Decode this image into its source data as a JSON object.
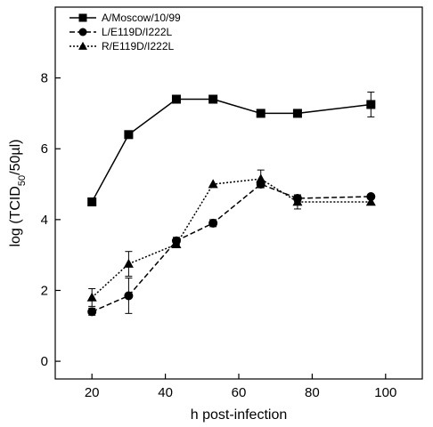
{
  "chart_data": {
    "type": "line",
    "xlabel": "h post-infection",
    "ylabel_parts": {
      "pre": "log (TCID",
      "sub": "50",
      "post": "/50µl)"
    },
    "xlim": [
      10,
      110
    ],
    "ylim": [
      -0.5,
      10
    ],
    "xticks": [
      20,
      40,
      60,
      80,
      100
    ],
    "yticks": [
      0,
      2,
      4,
      6,
      8
    ],
    "grid": false,
    "legend_position": "top-left",
    "series": [
      {
        "name": "A/Moscow/10/99",
        "marker": "square",
        "dash": "solid",
        "points": [
          {
            "x": 20,
            "y": 4.5
          },
          {
            "x": 30,
            "y": 6.4
          },
          {
            "x": 43,
            "y": 7.4
          },
          {
            "x": 53,
            "y": 7.4
          },
          {
            "x": 66,
            "y": 7.0
          },
          {
            "x": 76,
            "y": 7.0
          },
          {
            "x": 96,
            "y": 7.25,
            "err": 0.35
          }
        ]
      },
      {
        "name": "L/E119D/I222L",
        "marker": "circle",
        "dash": "dashed",
        "points": [
          {
            "x": 20,
            "y": 1.4,
            "err": 0.1
          },
          {
            "x": 30,
            "y": 1.85,
            "err": 0.5
          },
          {
            "x": 43,
            "y": 3.4,
            "err": 0.1
          },
          {
            "x": 53,
            "y": 3.9,
            "err": 0.1
          },
          {
            "x": 66,
            "y": 5.0,
            "err": 0.1
          },
          {
            "x": 76,
            "y": 4.6,
            "err": 0.1
          },
          {
            "x": 96,
            "y": 4.65
          }
        ]
      },
      {
        "name": "R/E119D/I222L",
        "marker": "triangle",
        "dash": "dotted",
        "points": [
          {
            "x": 20,
            "y": 1.8,
            "err": 0.25
          },
          {
            "x": 30,
            "y": 2.75,
            "err": 0.35
          },
          {
            "x": 43,
            "y": 3.3
          },
          {
            "x": 53,
            "y": 5.0
          },
          {
            "x": 66,
            "y": 5.15,
            "err": 0.25
          },
          {
            "x": 76,
            "y": 4.5,
            "err": 0.2
          },
          {
            "x": 96,
            "y": 4.5
          }
        ]
      }
    ]
  }
}
